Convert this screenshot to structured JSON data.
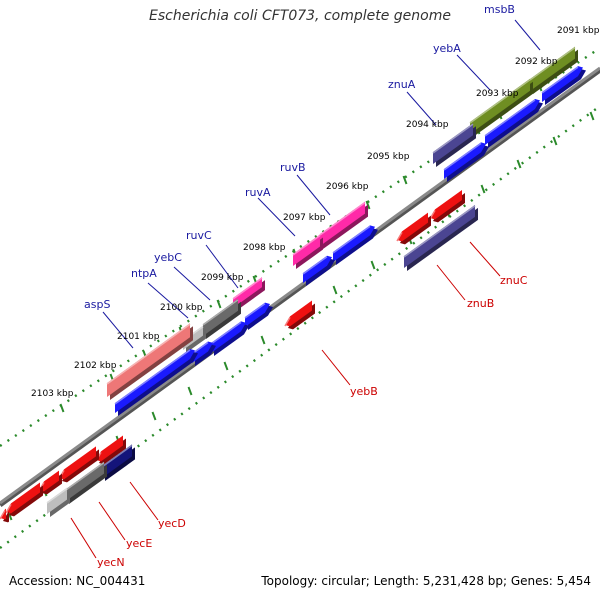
{
  "title": "Escherichia coli CFT073, complete genome",
  "footer": {
    "accession": "Accession: NC_004431",
    "summary": "Topology: circular; Length: 5,231,428 bp; Genes: 5,454"
  },
  "colors": {
    "axis": "#8a8a8a",
    "tick_track": "#2b8a2b",
    "label_forward": "#1a1aa0",
    "label_reverse": "#cc0000",
    "blue": "#1a1aff",
    "red": "#ee1111",
    "pink": "#ff2aa8",
    "olive": "#6f8e22",
    "purple": "#4b4592",
    "gray": "#6a6a6a",
    "lightgray": "#bdbdbd",
    "navy": "#14147a",
    "salmon": "#ee7777"
  },
  "kbp_labels": [
    "2091 kbp",
    "2092 kbp",
    "2093 kbp",
    "2094 kbp",
    "2095 kbp",
    "2096 kbp",
    "2097 kbp",
    "2098 kbp",
    "2099 kbp",
    "2100 kbp",
    "2101 kbp",
    "2102 kbp",
    "2103 kbp"
  ],
  "gene_labels": {
    "forward": [
      "msbB",
      "yebA",
      "znuA",
      "ruvB",
      "ruvA",
      "ruvC",
      "yebC",
      "ntpA",
      "aspS"
    ],
    "reverse": [
      "znuC",
      "znuB",
      "yebB",
      "yecD",
      "yecE",
      "yecN"
    ]
  }
}
